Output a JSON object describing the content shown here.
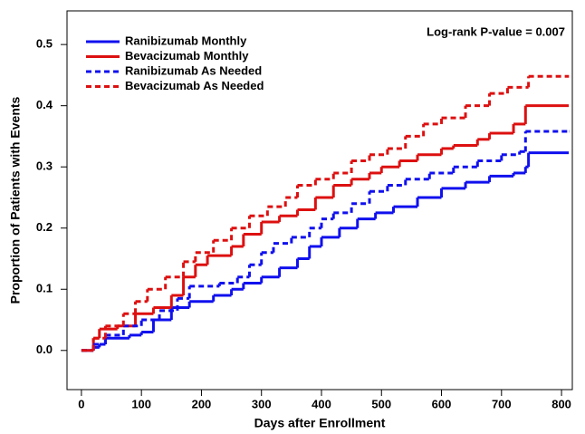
{
  "chart_data": {
    "type": "step",
    "annotation": "Log-rank P-value = 0.007",
    "x_label": "Days after Enrollment",
    "y_label": "Proportion of Patients with Events",
    "xlim": [
      -24,
      818
    ],
    "ylim": [
      -0.064,
      0.555
    ],
    "xticks": [
      0,
      100,
      200,
      300,
      400,
      500,
      600,
      700,
      800
    ],
    "yticks": [
      {
        "value": 0,
        "label": "0.0"
      },
      0.1,
      0.2,
      0.3,
      0.4,
      0.5
    ],
    "legend": "upper left",
    "series": [
      {
        "name": "Ranibizumab Monthly",
        "color": "#1010ee",
        "dashed": false,
        "x": [
          0,
          20,
          30,
          40,
          80,
          100,
          120,
          150,
          180,
          220,
          250,
          270,
          300,
          330,
          360,
          380,
          400,
          430,
          460,
          490,
          520,
          560,
          600,
          640,
          680,
          720,
          740,
          745,
          812
        ],
        "values": [
          0,
          0.005,
          0.01,
          0.02,
          0.025,
          0.03,
          0.05,
          0.07,
          0.08,
          0.09,
          0.1,
          0.11,
          0.12,
          0.135,
          0.15,
          0.17,
          0.185,
          0.2,
          0.215,
          0.225,
          0.235,
          0.25,
          0.265,
          0.275,
          0.285,
          0.29,
          0.3,
          0.323,
          0.323
        ]
      },
      {
        "name": "Bevacizumab Monthly",
        "color": "#dd1010",
        "dashed": false,
        "x": [
          0,
          20,
          30,
          60,
          90,
          120,
          150,
          170,
          190,
          210,
          250,
          270,
          300,
          330,
          360,
          390,
          420,
          450,
          480,
          500,
          530,
          560,
          600,
          620,
          660,
          680,
          720,
          740,
          812
        ],
        "values": [
          0,
          0.02,
          0.035,
          0.04,
          0.06,
          0.07,
          0.09,
          0.12,
          0.14,
          0.155,
          0.17,
          0.19,
          0.21,
          0.22,
          0.23,
          0.25,
          0.27,
          0.28,
          0.29,
          0.3,
          0.31,
          0.32,
          0.33,
          0.335,
          0.345,
          0.355,
          0.37,
          0.4,
          0.4
        ]
      },
      {
        "name": "Ranibizumab As Needed",
        "color": "#1010ee",
        "dashed": true,
        "x": [
          0,
          20,
          40,
          70,
          100,
          130,
          160,
          180,
          230,
          260,
          280,
          300,
          320,
          350,
          380,
          400,
          420,
          450,
          480,
          510,
          540,
          580,
          620,
          660,
          700,
          730,
          740,
          812
        ],
        "values": [
          0,
          0.01,
          0.025,
          0.04,
          0.05,
          0.065,
          0.085,
          0.105,
          0.11,
          0.12,
          0.14,
          0.16,
          0.175,
          0.185,
          0.2,
          0.215,
          0.225,
          0.24,
          0.26,
          0.27,
          0.28,
          0.29,
          0.3,
          0.31,
          0.32,
          0.325,
          0.358,
          0.358
        ]
      },
      {
        "name": "Bevacizumab As Needed",
        "color": "#dd1010",
        "dashed": true,
        "x": [
          0,
          20,
          40,
          70,
          90,
          110,
          140,
          170,
          190,
          220,
          250,
          280,
          310,
          340,
          360,
          390,
          420,
          450,
          480,
          510,
          540,
          570,
          600,
          640,
          680,
          710,
          745,
          812
        ],
        "values": [
          0,
          0.02,
          0.04,
          0.06,
          0.08,
          0.1,
          0.12,
          0.145,
          0.16,
          0.18,
          0.2,
          0.22,
          0.235,
          0.25,
          0.27,
          0.28,
          0.29,
          0.31,
          0.32,
          0.33,
          0.35,
          0.37,
          0.38,
          0.4,
          0.42,
          0.43,
          0.448,
          0.448
        ]
      }
    ]
  }
}
